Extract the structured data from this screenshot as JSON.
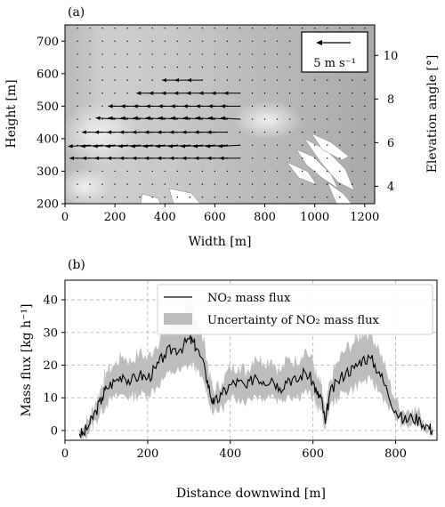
{
  "chart_data": [
    {
      "panel_label": "(a)",
      "type": "scatter",
      "subtype": "wind-vector-field over grayscale camera image",
      "xlabel": "Width [m]",
      "ylabel": "Height [m]",
      "y2label": "Elevation angle [°]",
      "xlim": [
        0,
        1240
      ],
      "ylim": [
        200,
        750
      ],
      "y2lim": [
        3.2,
        11.4
      ],
      "xticks": [
        0,
        200,
        400,
        600,
        800,
        1000,
        1200
      ],
      "yticks": [
        200,
        300,
        400,
        500,
        600,
        700
      ],
      "y2ticks": [
        4,
        6,
        8,
        10
      ],
      "legend": {
        "label": "5 m s⁻¹",
        "reference_speed": 5,
        "position": "top-right"
      },
      "vector_grid": {
        "x_spacing": 50,
        "y_spacing": 40
      },
      "vector_rows": [
        {
          "y": 340,
          "x_from": 100,
          "x_to": 700,
          "u": -3.2,
          "v": 0
        },
        {
          "y": 380,
          "x_from": 100,
          "x_to": 700,
          "u": -3.4,
          "v": -0.2
        },
        {
          "y": 420,
          "x_from": 150,
          "x_to": 650,
          "u": -3.2,
          "v": 0
        },
        {
          "y": 460,
          "x_from": 200,
          "x_to": 700,
          "u": -3.0,
          "v": 0.2
        },
        {
          "y": 500,
          "x_from": 250,
          "x_to": 700,
          "u": -3.0,
          "v": 0
        },
        {
          "y": 540,
          "x_from": 350,
          "x_to": 700,
          "u": -2.5,
          "v": 0
        },
        {
          "y": 580,
          "x_from": 450,
          "x_to": 550,
          "u": -2.4,
          "v": 0
        }
      ]
    },
    {
      "panel_label": "(b)",
      "type": "line",
      "xlabel": "Distance downwind [m]",
      "ylabel": "Mass flux [kg h⁻¹]",
      "xlim": [
        0,
        900
      ],
      "ylim": [
        -3,
        46
      ],
      "xticks": [
        0,
        200,
        400,
        600,
        800
      ],
      "yticks": [
        0,
        10,
        20,
        30,
        40
      ],
      "grid": true,
      "legend_position": "top-right",
      "series": [
        {
          "name": "NO₂ mass flux",
          "x": [
            35,
            45,
            60,
            75,
            90,
            100,
            120,
            140,
            160,
            180,
            200,
            220,
            240,
            260,
            280,
            300,
            310,
            320,
            340,
            350,
            360,
            380,
            400,
            420,
            440,
            460,
            480,
            500,
            520,
            540,
            560,
            580,
            600,
            610,
            620,
            630,
            640,
            660,
            680,
            700,
            720,
            740,
            760,
            780,
            800,
            820,
            840,
            860,
            880,
            890
          ],
          "y": [
            -1,
            -1,
            2,
            6,
            10,
            13,
            15,
            17,
            15,
            17,
            16,
            19,
            23,
            25,
            25,
            28,
            27,
            25,
            18,
            12,
            8,
            11,
            14,
            15,
            13,
            17,
            15,
            16,
            13,
            16,
            15,
            18,
            15,
            11,
            10,
            2,
            11,
            15,
            18,
            19,
            22,
            22,
            18,
            12,
            6,
            3,
            4,
            3,
            1,
            0
          ]
        },
        {
          "name": "Uncertainty of NO₂ mass flux",
          "x": [
            35,
            45,
            60,
            75,
            90,
            100,
            120,
            140,
            160,
            180,
            200,
            220,
            240,
            260,
            280,
            300,
            310,
            320,
            340,
            350,
            360,
            380,
            400,
            420,
            440,
            460,
            480,
            500,
            520,
            540,
            560,
            580,
            600,
            610,
            620,
            630,
            640,
            660,
            680,
            700,
            720,
            740,
            760,
            780,
            800,
            820,
            840,
            860,
            880,
            890
          ],
          "lower": [
            -2,
            -2,
            0,
            3,
            6,
            8,
            10,
            11,
            10,
            11,
            11,
            13,
            16,
            18,
            18,
            20,
            20,
            18,
            13,
            8,
            5,
            7,
            9,
            10,
            9,
            11,
            10,
            11,
            9,
            11,
            10,
            12,
            10,
            7,
            6,
            0,
            7,
            10,
            12,
            13,
            15,
            15,
            12,
            8,
            4,
            1,
            2,
            1,
            0,
            -1
          ],
          "upper": [
            0,
            1,
            4,
            9,
            14,
            18,
            20,
            23,
            21,
            24,
            22,
            26,
            31,
            34,
            35,
            38,
            37,
            34,
            25,
            17,
            12,
            15,
            19,
            20,
            18,
            23,
            21,
            22,
            18,
            22,
            21,
            25,
            21,
            16,
            14,
            5,
            15,
            21,
            25,
            27,
            30,
            30,
            25,
            17,
            9,
            6,
            7,
            5,
            2,
            1
          ]
        }
      ]
    }
  ]
}
